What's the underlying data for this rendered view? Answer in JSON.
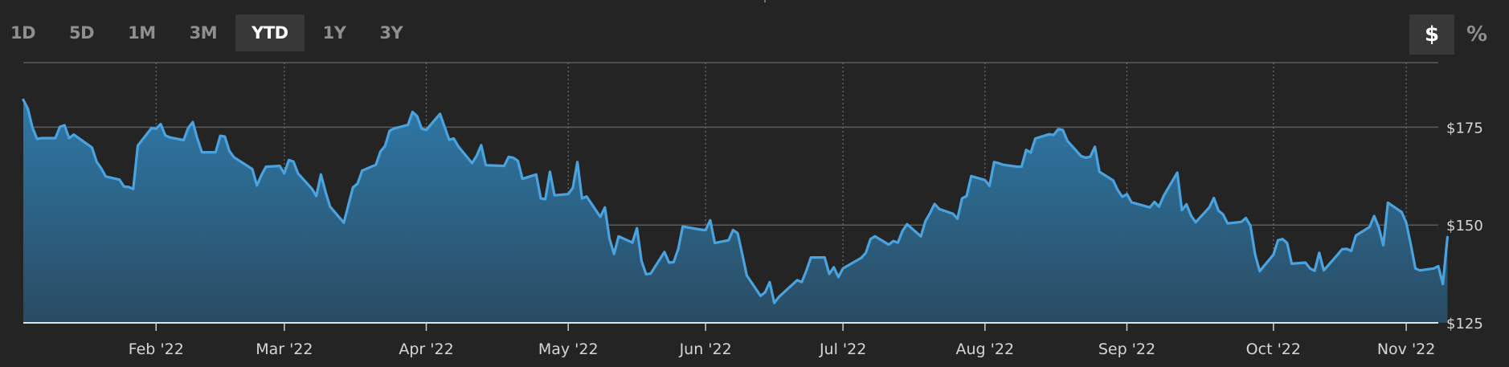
{
  "range_buttons": [
    "1D",
    "5D",
    "1M",
    "3M",
    "YTD",
    "1Y",
    "3Y"
  ],
  "active_range": "YTD",
  "unit_buttons": {
    "dollar": "$",
    "percent": "%"
  },
  "active_unit": "dollar",
  "colors": {
    "background": "#242424",
    "line": "#4aa3de",
    "fill_top": "#2e79a8",
    "fill_bottom": "#2a4b62",
    "grid": "#5c5c5c",
    "text": "#d6d6d6"
  },
  "chart_data": {
    "type": "area",
    "title": "",
    "xlabel": "",
    "ylabel": "",
    "ylim": [
      125,
      191.5
    ],
    "y_ticks": [
      125,
      150,
      175
    ],
    "y_tick_labels": [
      "$125",
      "$150",
      "$175"
    ],
    "x_domain": [
      "2022-01-03",
      "2022-11-08"
    ],
    "x_ticks": [
      "2022-02-01",
      "2022-03-01",
      "2022-04-01",
      "2022-05-02",
      "2022-06-01",
      "2022-07-01",
      "2022-08-01",
      "2022-09-01",
      "2022-10-03",
      "2022-11-01"
    ],
    "x_tick_labels": [
      "Feb '22",
      "Mar '22",
      "Apr '22",
      "May '22",
      "Jun '22",
      "Jul '22",
      "Aug '22",
      "Sep '22",
      "Oct '22",
      "Nov '22"
    ],
    "grid": true,
    "series": [
      {
        "points": [
          [
            "2022-01-03",
            182.0
          ],
          [
            "2022-01-04",
            179.7
          ],
          [
            "2022-01-05",
            174.9
          ],
          [
            "2022-01-06",
            172.0
          ],
          [
            "2022-01-07",
            172.2
          ],
          [
            "2022-01-10",
            172.2
          ],
          [
            "2022-01-11",
            175.1
          ],
          [
            "2022-01-12",
            175.5
          ],
          [
            "2022-01-13",
            172.2
          ],
          [
            "2022-01-14",
            173.1
          ],
          [
            "2022-01-18",
            169.8
          ],
          [
            "2022-01-19",
            166.2
          ],
          [
            "2022-01-20",
            164.5
          ],
          [
            "2022-01-21",
            162.4
          ],
          [
            "2022-01-24",
            161.6
          ],
          [
            "2022-01-25",
            159.8
          ],
          [
            "2022-01-26",
            159.7
          ],
          [
            "2022-01-27",
            159.2
          ],
          [
            "2022-01-28",
            170.3
          ],
          [
            "2022-01-31",
            174.8
          ],
          [
            "2022-02-01",
            174.6
          ],
          [
            "2022-02-02",
            175.8
          ],
          [
            "2022-02-03",
            172.9
          ],
          [
            "2022-02-04",
            172.4
          ],
          [
            "2022-02-07",
            171.7
          ],
          [
            "2022-02-08",
            174.8
          ],
          [
            "2022-02-09",
            176.3
          ],
          [
            "2022-02-10",
            172.1
          ],
          [
            "2022-02-11",
            168.6
          ],
          [
            "2022-02-14",
            168.6
          ],
          [
            "2022-02-15",
            172.8
          ],
          [
            "2022-02-16",
            172.6
          ],
          [
            "2022-02-17",
            168.9
          ],
          [
            "2022-02-18",
            167.3
          ],
          [
            "2022-02-22",
            164.3
          ],
          [
            "2022-02-23",
            160.1
          ],
          [
            "2022-02-24",
            162.7
          ],
          [
            "2022-02-25",
            164.9
          ],
          [
            "2022-02-28",
            165.1
          ],
          [
            "2022-03-01",
            163.2
          ],
          [
            "2022-03-02",
            166.6
          ],
          [
            "2022-03-03",
            166.2
          ],
          [
            "2022-03-04",
            163.2
          ],
          [
            "2022-03-07",
            159.3
          ],
          [
            "2022-03-08",
            157.4
          ],
          [
            "2022-03-09",
            162.9
          ],
          [
            "2022-03-10",
            158.5
          ],
          [
            "2022-03-11",
            154.7
          ],
          [
            "2022-03-14",
            150.6
          ],
          [
            "2022-03-15",
            155.1
          ],
          [
            "2022-03-16",
            159.6
          ],
          [
            "2022-03-17",
            160.6
          ],
          [
            "2022-03-18",
            163.9
          ],
          [
            "2022-03-21",
            165.4
          ],
          [
            "2022-03-22",
            168.8
          ],
          [
            "2022-03-23",
            170.2
          ],
          [
            "2022-03-24",
            174.1
          ],
          [
            "2022-03-25",
            174.7
          ],
          [
            "2022-03-28",
            175.6
          ],
          [
            "2022-03-29",
            178.9
          ],
          [
            "2022-03-30",
            177.8
          ],
          [
            "2022-03-31",
            174.6
          ],
          [
            "2022-04-01",
            174.3
          ],
          [
            "2022-04-04",
            178.4
          ],
          [
            "2022-04-05",
            175.1
          ],
          [
            "2022-04-06",
            171.8
          ],
          [
            "2022-04-07",
            172.1
          ],
          [
            "2022-04-08",
            170.1
          ],
          [
            "2022-04-11",
            165.8
          ],
          [
            "2022-04-12",
            167.7
          ],
          [
            "2022-04-13",
            170.4
          ],
          [
            "2022-04-14",
            165.3
          ],
          [
            "2022-04-18",
            165.1
          ],
          [
            "2022-04-19",
            167.4
          ],
          [
            "2022-04-20",
            167.2
          ],
          [
            "2022-04-21",
            166.4
          ],
          [
            "2022-04-22",
            161.8
          ],
          [
            "2022-04-25",
            162.9
          ],
          [
            "2022-04-26",
            156.8
          ],
          [
            "2022-04-27",
            156.6
          ],
          [
            "2022-04-28",
            163.6
          ],
          [
            "2022-04-29",
            157.6
          ],
          [
            "2022-05-02",
            157.9
          ],
          [
            "2022-05-03",
            159.5
          ],
          [
            "2022-05-04",
            166.1
          ],
          [
            "2022-05-05",
            156.8
          ],
          [
            "2022-05-06",
            157.3
          ],
          [
            "2022-05-09",
            152.1
          ],
          [
            "2022-05-10",
            154.5
          ],
          [
            "2022-05-11",
            146.5
          ],
          [
            "2022-05-12",
            142.6
          ],
          [
            "2022-05-13",
            147.1
          ],
          [
            "2022-05-16",
            145.5
          ],
          [
            "2022-05-17",
            149.2
          ],
          [
            "2022-05-18",
            140.8
          ],
          [
            "2022-05-19",
            137.4
          ],
          [
            "2022-05-20",
            137.6
          ],
          [
            "2022-05-23",
            143.1
          ],
          [
            "2022-05-24",
            140.4
          ],
          [
            "2022-05-25",
            140.5
          ],
          [
            "2022-05-26",
            143.8
          ],
          [
            "2022-05-27",
            149.6
          ],
          [
            "2022-05-31",
            148.8
          ],
          [
            "2022-06-01",
            148.7
          ],
          [
            "2022-06-02",
            151.2
          ],
          [
            "2022-06-03",
            145.4
          ],
          [
            "2022-06-06",
            146.1
          ],
          [
            "2022-06-07",
            148.7
          ],
          [
            "2022-06-08",
            147.9
          ],
          [
            "2022-06-09",
            142.6
          ],
          [
            "2022-06-10",
            137.1
          ],
          [
            "2022-06-13",
            131.9
          ],
          [
            "2022-06-14",
            132.8
          ],
          [
            "2022-06-15",
            135.4
          ],
          [
            "2022-06-16",
            130.1
          ],
          [
            "2022-06-17",
            131.6
          ],
          [
            "2022-06-21",
            135.9
          ],
          [
            "2022-06-22",
            135.4
          ],
          [
            "2022-06-23",
            138.3
          ],
          [
            "2022-06-24",
            141.7
          ],
          [
            "2022-06-27",
            141.7
          ],
          [
            "2022-06-28",
            137.5
          ],
          [
            "2022-06-29",
            139.2
          ],
          [
            "2022-06-30",
            136.7
          ],
          [
            "2022-07-01",
            138.9
          ],
          [
            "2022-07-05",
            141.6
          ],
          [
            "2022-07-06",
            142.9
          ],
          [
            "2022-07-07",
            146.4
          ],
          [
            "2022-07-08",
            147.1
          ],
          [
            "2022-07-11",
            145.0
          ],
          [
            "2022-07-12",
            145.9
          ],
          [
            "2022-07-13",
            145.5
          ],
          [
            "2022-07-14",
            148.5
          ],
          [
            "2022-07-15",
            150.2
          ],
          [
            "2022-07-18",
            147.1
          ],
          [
            "2022-07-19",
            151.0
          ],
          [
            "2022-07-20",
            153.0
          ],
          [
            "2022-07-21",
            155.4
          ],
          [
            "2022-07-22",
            154.1
          ],
          [
            "2022-07-25",
            152.9
          ],
          [
            "2022-07-26",
            151.6
          ],
          [
            "2022-07-27",
            156.8
          ],
          [
            "2022-07-28",
            157.4
          ],
          [
            "2022-07-29",
            162.5
          ],
          [
            "2022-08-01",
            161.5
          ],
          [
            "2022-08-02",
            160.0
          ],
          [
            "2022-08-03",
            166.1
          ],
          [
            "2022-08-04",
            165.8
          ],
          [
            "2022-08-05",
            165.4
          ],
          [
            "2022-08-08",
            164.9
          ],
          [
            "2022-08-09",
            164.9
          ],
          [
            "2022-08-10",
            169.2
          ],
          [
            "2022-08-11",
            168.5
          ],
          [
            "2022-08-12",
            172.1
          ],
          [
            "2022-08-15",
            173.2
          ],
          [
            "2022-08-16",
            173.0
          ],
          [
            "2022-08-17",
            174.5
          ],
          [
            "2022-08-18",
            174.3
          ],
          [
            "2022-08-19",
            171.5
          ],
          [
            "2022-08-22",
            167.6
          ],
          [
            "2022-08-23",
            167.2
          ],
          [
            "2022-08-24",
            167.5
          ],
          [
            "2022-08-25",
            170.0
          ],
          [
            "2022-08-26",
            163.6
          ],
          [
            "2022-08-29",
            161.4
          ],
          [
            "2022-08-30",
            158.9
          ],
          [
            "2022-08-31",
            157.2
          ],
          [
            "2022-09-01",
            157.9
          ],
          [
            "2022-09-02",
            155.8
          ],
          [
            "2022-09-06",
            154.5
          ],
          [
            "2022-09-07",
            155.9
          ],
          [
            "2022-09-08",
            154.7
          ],
          [
            "2022-09-09",
            157.4
          ],
          [
            "2022-09-12",
            163.4
          ],
          [
            "2022-09-13",
            153.8
          ],
          [
            "2022-09-14",
            155.3
          ],
          [
            "2022-09-15",
            152.4
          ],
          [
            "2022-09-16",
            150.7
          ],
          [
            "2022-09-19",
            154.5
          ],
          [
            "2022-09-20",
            156.9
          ],
          [
            "2022-09-21",
            153.7
          ],
          [
            "2022-09-22",
            152.7
          ],
          [
            "2022-09-23",
            150.4
          ],
          [
            "2022-09-26",
            150.8
          ],
          [
            "2022-09-27",
            151.8
          ],
          [
            "2022-09-28",
            149.8
          ],
          [
            "2022-09-29",
            142.5
          ],
          [
            "2022-09-30",
            138.2
          ],
          [
            "2022-10-03",
            142.4
          ],
          [
            "2022-10-04",
            146.1
          ],
          [
            "2022-10-05",
            146.4
          ],
          [
            "2022-10-06",
            145.4
          ],
          [
            "2022-10-07",
            140.1
          ],
          [
            "2022-10-10",
            140.4
          ],
          [
            "2022-10-11",
            138.9
          ],
          [
            "2022-10-12",
            138.3
          ],
          [
            "2022-10-13",
            142.9
          ],
          [
            "2022-10-14",
            138.4
          ],
          [
            "2022-10-17",
            142.4
          ],
          [
            "2022-10-18",
            143.8
          ],
          [
            "2022-10-19",
            143.9
          ],
          [
            "2022-10-20",
            143.4
          ],
          [
            "2022-10-21",
            147.3
          ],
          [
            "2022-10-24",
            149.5
          ],
          [
            "2022-10-25",
            152.3
          ],
          [
            "2022-10-26",
            149.4
          ],
          [
            "2022-10-27",
            144.8
          ],
          [
            "2022-10-28",
            155.7
          ],
          [
            "2022-10-31",
            153.3
          ],
          [
            "2022-11-01",
            150.6
          ],
          [
            "2022-11-02",
            145.0
          ],
          [
            "2022-11-03",
            138.9
          ],
          [
            "2022-11-04",
            138.4
          ],
          [
            "2022-11-07",
            138.9
          ],
          [
            "2022-11-08",
            139.5
          ],
          [
            "2022-11-09",
            134.9
          ],
          [
            "2022-11-10",
            146.9
          ]
        ]
      }
    ]
  }
}
